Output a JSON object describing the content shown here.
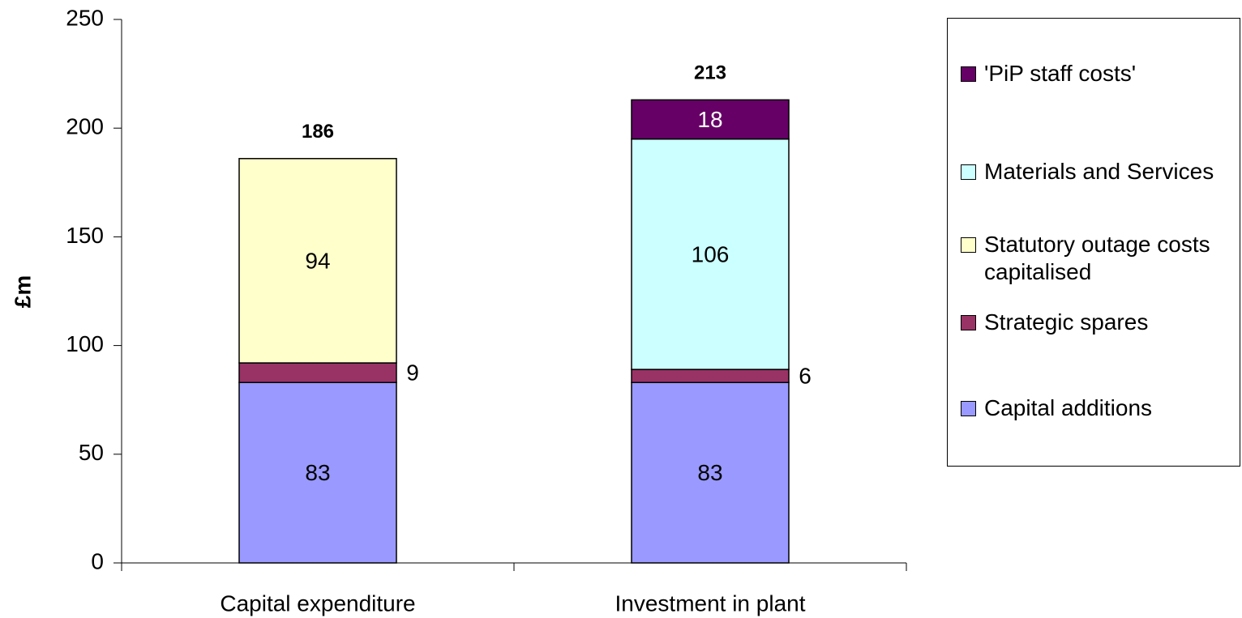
{
  "chart_data": {
    "type": "stacked_bar",
    "y_label": "£m",
    "categories": [
      "Capital expenditure",
      "Investment in plant"
    ],
    "series": [
      {
        "name": "Capital additions",
        "color": "#9999ff",
        "values": [
          83,
          83
        ]
      },
      {
        "name": "Strategic spares",
        "color": "#993366",
        "values": [
          9,
          6
        ]
      },
      {
        "name": "Statutory outage costs capitalised",
        "color": "#ffffcc",
        "values": [
          94,
          null
        ]
      },
      {
        "name": "Materials and Services",
        "color": "#ccffff",
        "values": [
          null,
          106
        ]
      },
      {
        "name": "'PiP staff costs'",
        "color": "#660066",
        "values": [
          null,
          18
        ]
      }
    ],
    "totals": [
      186,
      213
    ],
    "ylim": [
      0,
      250
    ],
    "yticks": [
      0,
      50,
      100,
      150,
      200,
      250
    ],
    "grid": false,
    "legend": "right"
  }
}
